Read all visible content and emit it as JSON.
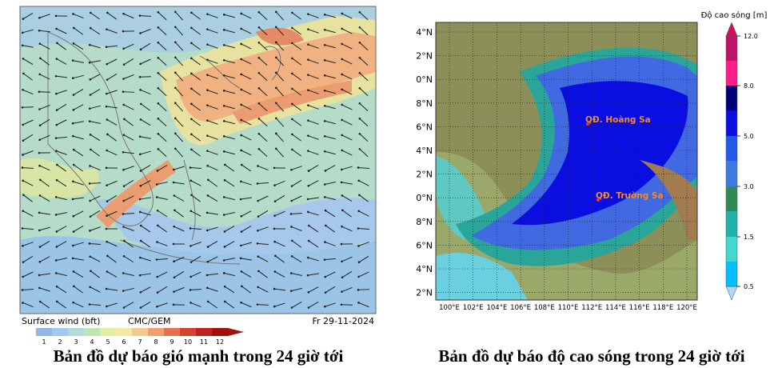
{
  "wind_map": {
    "footer": {
      "title": "Surface wind (bft)",
      "model": "CMC/GEM",
      "date": "Fr 29-11-2024"
    },
    "scale_labels": [
      "1",
      "2",
      "3",
      "4",
      "5",
      "6",
      "7",
      "8",
      "9",
      "10",
      "11",
      "12"
    ],
    "caption": "Bản đồ dự báo gió mạnh trong 24 giờ tới"
  },
  "wave_map": {
    "scale_title": "Độ cao sóng [m]",
    "scale_labels": [
      "12.0",
      "8.0",
      "5.0",
      "3.0",
      "1.5",
      "0.5"
    ],
    "lat_labels": [
      "4°N",
      "2°N",
      "0°N",
      "8°N",
      "6°N",
      "4°N",
      "2°N",
      "0°N",
      "8°N",
      "6°N",
      "4°N",
      "2°N"
    ],
    "lon_labels": [
      "100°E",
      "102°E",
      "104°E",
      "106°E",
      "108°E",
      "110°E",
      "112°E",
      "114°E",
      "116°E",
      "118°E",
      "120°E"
    ],
    "places": [
      "QĐ. Hoàng Sa",
      "QĐ. Trường Sa"
    ],
    "caption": "Bản đồ dự báo độ cao sóng trong 24 giờ tới"
  }
}
